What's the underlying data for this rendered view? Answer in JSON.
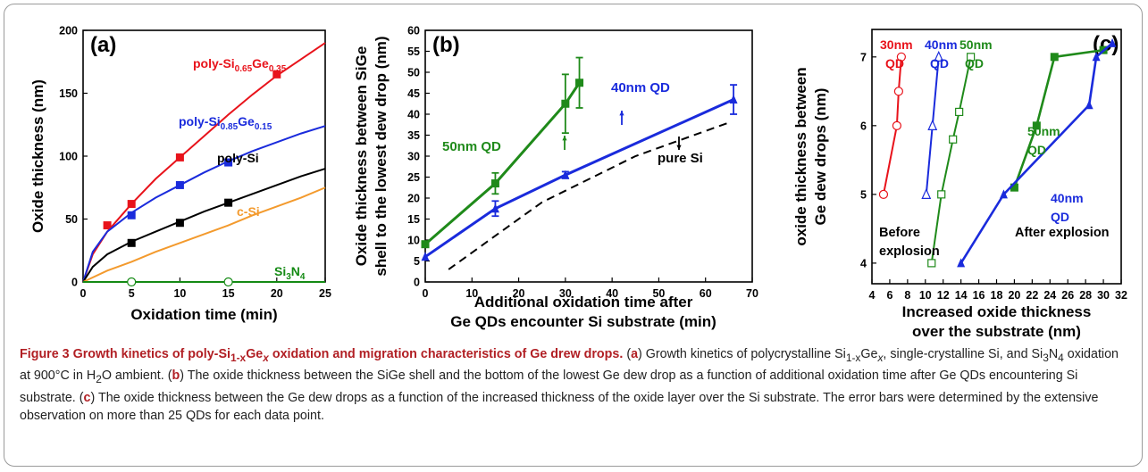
{
  "chart_data": [
    {
      "type": "line",
      "panel": "(a)",
      "xlabel": "Oxidation time (min)",
      "ylabel": "Oxide thickness (nm)",
      "xlim": [
        0,
        25
      ],
      "ylim": [
        0,
        200
      ],
      "xticks": [
        "0",
        "5",
        "10",
        "15",
        "20",
        "25"
      ],
      "yticks": [
        "0",
        "50",
        "100",
        "150",
        "200"
      ],
      "series": [
        {
          "name": "poly-Si0.65Ge0.35",
          "label_main": "poly-Si",
          "sub1": "0.65",
          "mid": "Ge",
          "sub2": "0.35",
          "color": "#e8131b",
          "marker": "filled-square",
          "points": [
            [
              2.5,
              45
            ],
            [
              5,
              62
            ],
            [
              10,
              99
            ],
            [
              20,
              165
            ]
          ],
          "curve": [
            [
              0,
              0
            ],
            [
              1,
              22
            ],
            [
              2.5,
              40
            ],
            [
              5,
              62
            ],
            [
              7.5,
              82
            ],
            [
              10,
              99
            ],
            [
              12.5,
              116
            ],
            [
              15,
              133
            ],
            [
              17.5,
              149
            ],
            [
              20,
              164
            ],
            [
              22.5,
              177
            ],
            [
              25,
              190
            ]
          ]
        },
        {
          "name": "poly-Si0.85Ge0.15",
          "label_main": "poly-Si",
          "sub1": "0.85",
          "mid": "Ge",
          "sub2": "0.15",
          "color": "#1a2bdc",
          "marker": "filled-square",
          "points": [
            [
              5,
              53
            ],
            [
              10,
              77
            ],
            [
              15,
              95
            ]
          ],
          "curve": [
            [
              0,
              0
            ],
            [
              1,
              24
            ],
            [
              2.5,
              40
            ],
            [
              5,
              55
            ],
            [
              7.5,
              67
            ],
            [
              10,
              77
            ],
            [
              12.5,
              87
            ],
            [
              15,
              96
            ],
            [
              17.5,
              104
            ],
            [
              20,
              111
            ],
            [
              22.5,
              118
            ],
            [
              25,
              124
            ]
          ]
        },
        {
          "name": "poly-Si",
          "color": "#000000",
          "marker": "filled-square",
          "points": [
            [
              5,
              31
            ],
            [
              10,
              47
            ],
            [
              15,
              63
            ]
          ],
          "curve": [
            [
              0,
              0
            ],
            [
              1,
              12
            ],
            [
              2.5,
              22
            ],
            [
              5,
              32
            ],
            [
              7.5,
              40
            ],
            [
              10,
              48
            ],
            [
              12.5,
              56
            ],
            [
              15,
              63
            ],
            [
              17.5,
              70
            ],
            [
              20,
              77
            ],
            [
              22.5,
              84
            ],
            [
              25,
              90
            ]
          ]
        },
        {
          "name": "c-Si",
          "color": "#f39a2d",
          "marker": "none",
          "curve": [
            [
              0,
              0
            ],
            [
              2.5,
              9
            ],
            [
              5,
              16
            ],
            [
              7.5,
              24
            ],
            [
              10,
              31
            ],
            [
              12.5,
              38
            ],
            [
              15,
              45
            ],
            [
              17.5,
              53
            ],
            [
              20,
              60
            ],
            [
              22.5,
              67
            ],
            [
              25,
              75
            ]
          ]
        },
        {
          "name": "Si3N4",
          "label_main": "Si",
          "sub1": "3",
          "mid": "N",
          "sub2": "4",
          "color": "#148a14",
          "marker": "open-circle",
          "points": [
            [
              5,
              0
            ],
            [
              15,
              0
            ]
          ],
          "curve": [
            [
              0,
              0
            ],
            [
              25,
              0
            ]
          ]
        }
      ]
    },
    {
      "type": "line",
      "panel": "(b)",
      "xlabel": [
        "Additional oxidation time after",
        "Ge QDs encounter Si substrate (min)"
      ],
      "ylabel": [
        "Oxide thickness between SiGe",
        "shell to the lowest dew drop (nm)"
      ],
      "xlim": [
        0,
        70
      ],
      "ylim": [
        0,
        60
      ],
      "xticks": [
        "0",
        "10",
        "20",
        "30",
        "40",
        "50",
        "60",
        "70"
      ],
      "yticks": [
        "0",
        "5",
        "10",
        "15",
        "20",
        "25",
        "30",
        "35",
        "40",
        "45",
        "50",
        "55",
        "60"
      ],
      "series": [
        {
          "name": "50nm QD",
          "color": "#1f8a1a",
          "marker": "filled-square",
          "points": [
            [
              0,
              9
            ],
            [
              15,
              23.5
            ],
            [
              30,
              42.5
            ],
            [
              33,
              47.5
            ]
          ],
          "errors": [
            0,
            2.5,
            7,
            6
          ]
        },
        {
          "name": "40nm QD",
          "color": "#1a2bdc",
          "marker": "filled-triangle",
          "points": [
            [
              0,
              6
            ],
            [
              15,
              17.5
            ],
            [
              30,
              25.5
            ],
            [
              66,
              43.5
            ]
          ],
          "errors": [
            0,
            1.8,
            0.8,
            3.5
          ]
        },
        {
          "name": "pure Si",
          "color": "#000000",
          "marker": "none",
          "dashed": true,
          "points": [
            [
              5,
              3
            ],
            [
              25,
              19
            ],
            [
              45,
              30
            ],
            [
              65,
              38
            ]
          ]
        }
      ]
    },
    {
      "type": "line",
      "panel": "(c)",
      "xlabel": [
        "Increased oxide thickness",
        "over the substrate (nm)"
      ],
      "ylabel": [
        "oxide thickness between",
        "Ge dew drops (nm)"
      ],
      "xlim": [
        4,
        32
      ],
      "ylim": [
        3.7,
        7.4
      ],
      "xticks": [
        "4",
        "6",
        "8",
        "10",
        "12",
        "14",
        "16",
        "18",
        "20",
        "22",
        "24",
        "26",
        "28",
        "30",
        "32"
      ],
      "yticks": [
        "4",
        "5",
        "6",
        "7"
      ],
      "annotations": {
        "before": [
          "Before",
          "explosion"
        ],
        "after": "After explosion"
      },
      "series": [
        {
          "name": "30nm QD",
          "label": [
            "30nm",
            "QD"
          ],
          "color": "#e8131b",
          "marker": "open-circle",
          "group": "before",
          "points": [
            [
              5.3,
              5
            ],
            [
              6.8,
              6
            ],
            [
              7,
              6.5
            ],
            [
              7.3,
              7
            ]
          ]
        },
        {
          "name": "40nm QD",
          "label": [
            "40nm",
            "QD"
          ],
          "color": "#1a2bdc",
          "marker": "open-triangle",
          "group": "before",
          "points": [
            [
              10.1,
              5
            ],
            [
              10.8,
              6
            ],
            [
              11.5,
              7
            ]
          ]
        },
        {
          "name": "50nm QD",
          "label": [
            "50nm",
            "QD"
          ],
          "color": "#1f8a1a",
          "marker": "open-square",
          "group": "before",
          "points": [
            [
              10.7,
              4
            ],
            [
              11.8,
              5
            ],
            [
              13.1,
              5.8
            ],
            [
              13.8,
              6.2
            ],
            [
              15.1,
              7
            ]
          ]
        },
        {
          "name": "50nm QD",
          "label": [
            "50nm",
            "QD"
          ],
          "color": "#1f8a1a",
          "marker": "filled-square",
          "group": "after",
          "points": [
            [
              20,
              5.1
            ],
            [
              22.5,
              6
            ],
            [
              24.5,
              7
            ],
            [
              30,
              7.1
            ]
          ]
        },
        {
          "name": "40nm QD",
          "label": [
            "40nm",
            "QD"
          ],
          "color": "#1a2bdc",
          "marker": "filled-triangle",
          "group": "after",
          "points": [
            [
              14,
              4
            ],
            [
              18.8,
              5
            ],
            [
              28.4,
              6.3
            ],
            [
              29.2,
              7
            ],
            [
              31,
              7.2
            ]
          ]
        }
      ]
    }
  ],
  "caption": {
    "figure_label": "Figure 3",
    "title_a": "Growth kinetics of poly-Si",
    "title_sub": "1-x",
    "title_ge": "Ge",
    "title_subx": "x",
    "title_b": " oxidation and migration characteristics of Ge drew drops.",
    "a_label": "a",
    "a_text_1": "Growth kinetics of polycrystalline Si",
    "a_sub1": "1-x",
    "a_ge": "Ge",
    "a_subx": "x",
    "a_text_2": ", single-crystalline Si, and Si",
    "a_sub3": "3",
    "a_n": "N",
    "a_sub4": "4",
    "a_text_3": " oxidation at 900°C in H",
    "a_sub2": "2",
    "a_text_4": "O ambient.",
    "b_label": "b",
    "b_text": "The oxide thickness between the SiGe shell and the bottom of the lowest Ge dew drop as a function of additional oxidation time after Ge QDs encountering Si substrate.",
    "c_label": "c",
    "c_text": "The oxide thickness between the Ge dew drops as a function of the increased thickness of the oxide layer over the Si substrate. The error bars were determined by the extensive observation on more than 25 QDs for each data point."
  }
}
